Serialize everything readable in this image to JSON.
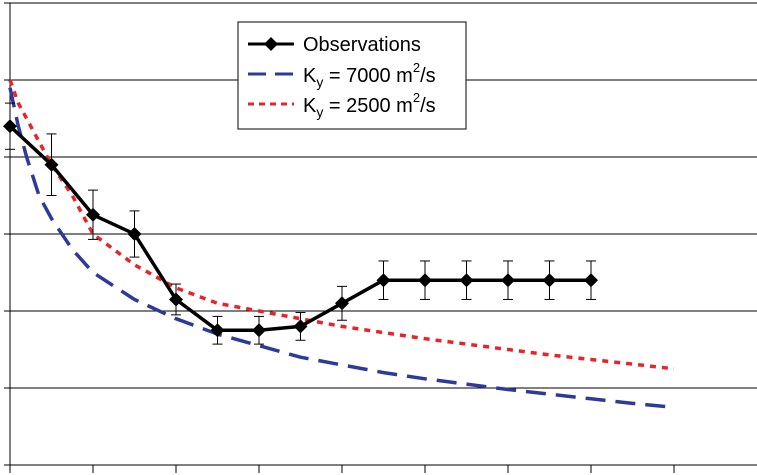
{
  "chart_data": {
    "type": "line",
    "title": "",
    "xlabel": "",
    "ylabel": "",
    "xlim": [
      0,
      8
    ],
    "ylim": [
      0,
      6
    ],
    "grid": "horizontal",
    "legend_position": "top-center",
    "series": [
      {
        "name": "Observations",
        "style": "solid-with-diamond-markers",
        "color": "#000000",
        "x": [
          0,
          0.5,
          1.0,
          1.5,
          2.0,
          2.5,
          3.0,
          3.5,
          4.0,
          4.5,
          5.0,
          5.5,
          6.0,
          6.5,
          7.0
        ],
        "y": [
          4.4,
          3.9,
          3.25,
          3.0,
          2.15,
          1.75,
          1.75,
          1.8,
          2.1,
          2.4,
          2.4,
          2.4,
          2.4,
          2.4,
          2.4
        ],
        "error": [
          0.3,
          0.4,
          0.32,
          0.3,
          0.2,
          0.18,
          0.18,
          0.18,
          0.22,
          0.25,
          0.25,
          0.25,
          0.25,
          0.25,
          0.25
        ]
      },
      {
        "name_parts": {
          "base": "K",
          "sub": "y",
          "rest": " = 7000 m",
          "sup": "2",
          "tail": "/s"
        },
        "style": "long-dash",
        "color": "#2e3a9a",
        "x": [
          0,
          0.1,
          0.2,
          0.35,
          0.5,
          0.75,
          1.0,
          1.5,
          2.0,
          2.5,
          3.0,
          3.5,
          4.0,
          4.5,
          5.0,
          5.5,
          6.0,
          6.5,
          7.0,
          7.5,
          8.0
        ],
        "y": [
          4.9,
          4.4,
          4.0,
          3.5,
          3.2,
          2.8,
          2.5,
          2.15,
          1.9,
          1.7,
          1.55,
          1.4,
          1.3,
          1.2,
          1.12,
          1.05,
          0.98,
          0.92,
          0.86,
          0.8,
          0.75
        ]
      },
      {
        "name_parts": {
          "base": "K",
          "sub": "y",
          "rest": " = 2500 m",
          "sup": "2",
          "tail": "/s"
        },
        "style": "short-dash",
        "color": "#e8232a",
        "x": [
          0,
          0.1,
          0.2,
          0.35,
          0.5,
          0.75,
          1.0,
          1.5,
          2.0,
          2.5,
          3.0,
          3.5,
          4.0,
          4.5,
          5.0,
          5.5,
          6.0,
          6.5,
          7.0,
          7.5,
          8.0
        ],
        "y": [
          5.0,
          4.7,
          4.5,
          4.2,
          3.9,
          3.5,
          3.0,
          2.6,
          2.3,
          2.1,
          2.0,
          1.9,
          1.8,
          1.72,
          1.64,
          1.57,
          1.5,
          1.43,
          1.37,
          1.31,
          1.25
        ]
      }
    ]
  }
}
